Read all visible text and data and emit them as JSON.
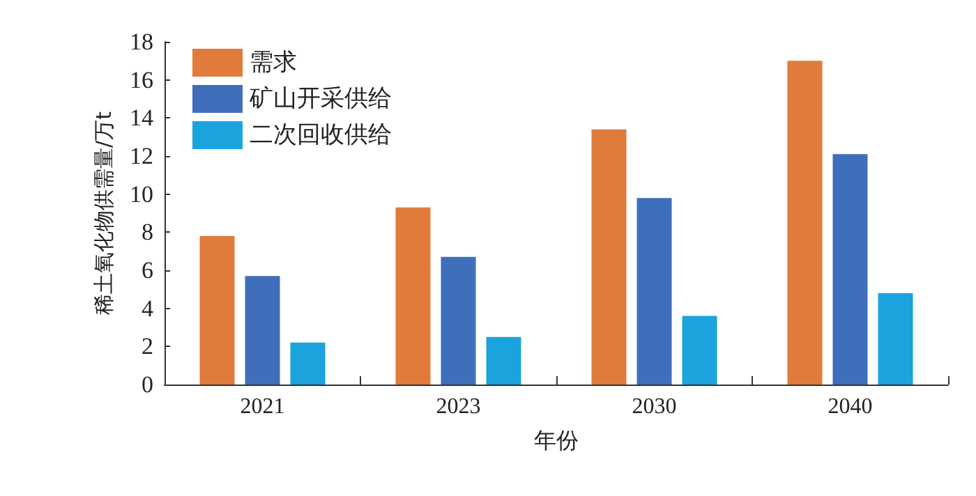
{
  "chart_data": {
    "type": "bar",
    "xlabel": "年份",
    "ylabel": "稀土氧化物供需量/万t",
    "categories": [
      "2021",
      "2023",
      "2030",
      "2040"
    ],
    "series": [
      {
        "name": "需求",
        "color": "#e07b3c",
        "values": [
          7.8,
          9.3,
          13.4,
          17.0
        ]
      },
      {
        "name": "矿山开采供给",
        "color": "#3f6fba",
        "values": [
          5.7,
          6.7,
          9.8,
          12.1
        ]
      },
      {
        "name": "二次回收供给",
        "color": "#1aa3dc",
        "values": [
          2.2,
          2.5,
          3.6,
          4.8
        ]
      }
    ],
    "ylim": [
      0,
      18
    ],
    "yticks": [
      0,
      2,
      4,
      6,
      8,
      10,
      12,
      14,
      16,
      18
    ],
    "grid": false,
    "legend": "top left"
  }
}
